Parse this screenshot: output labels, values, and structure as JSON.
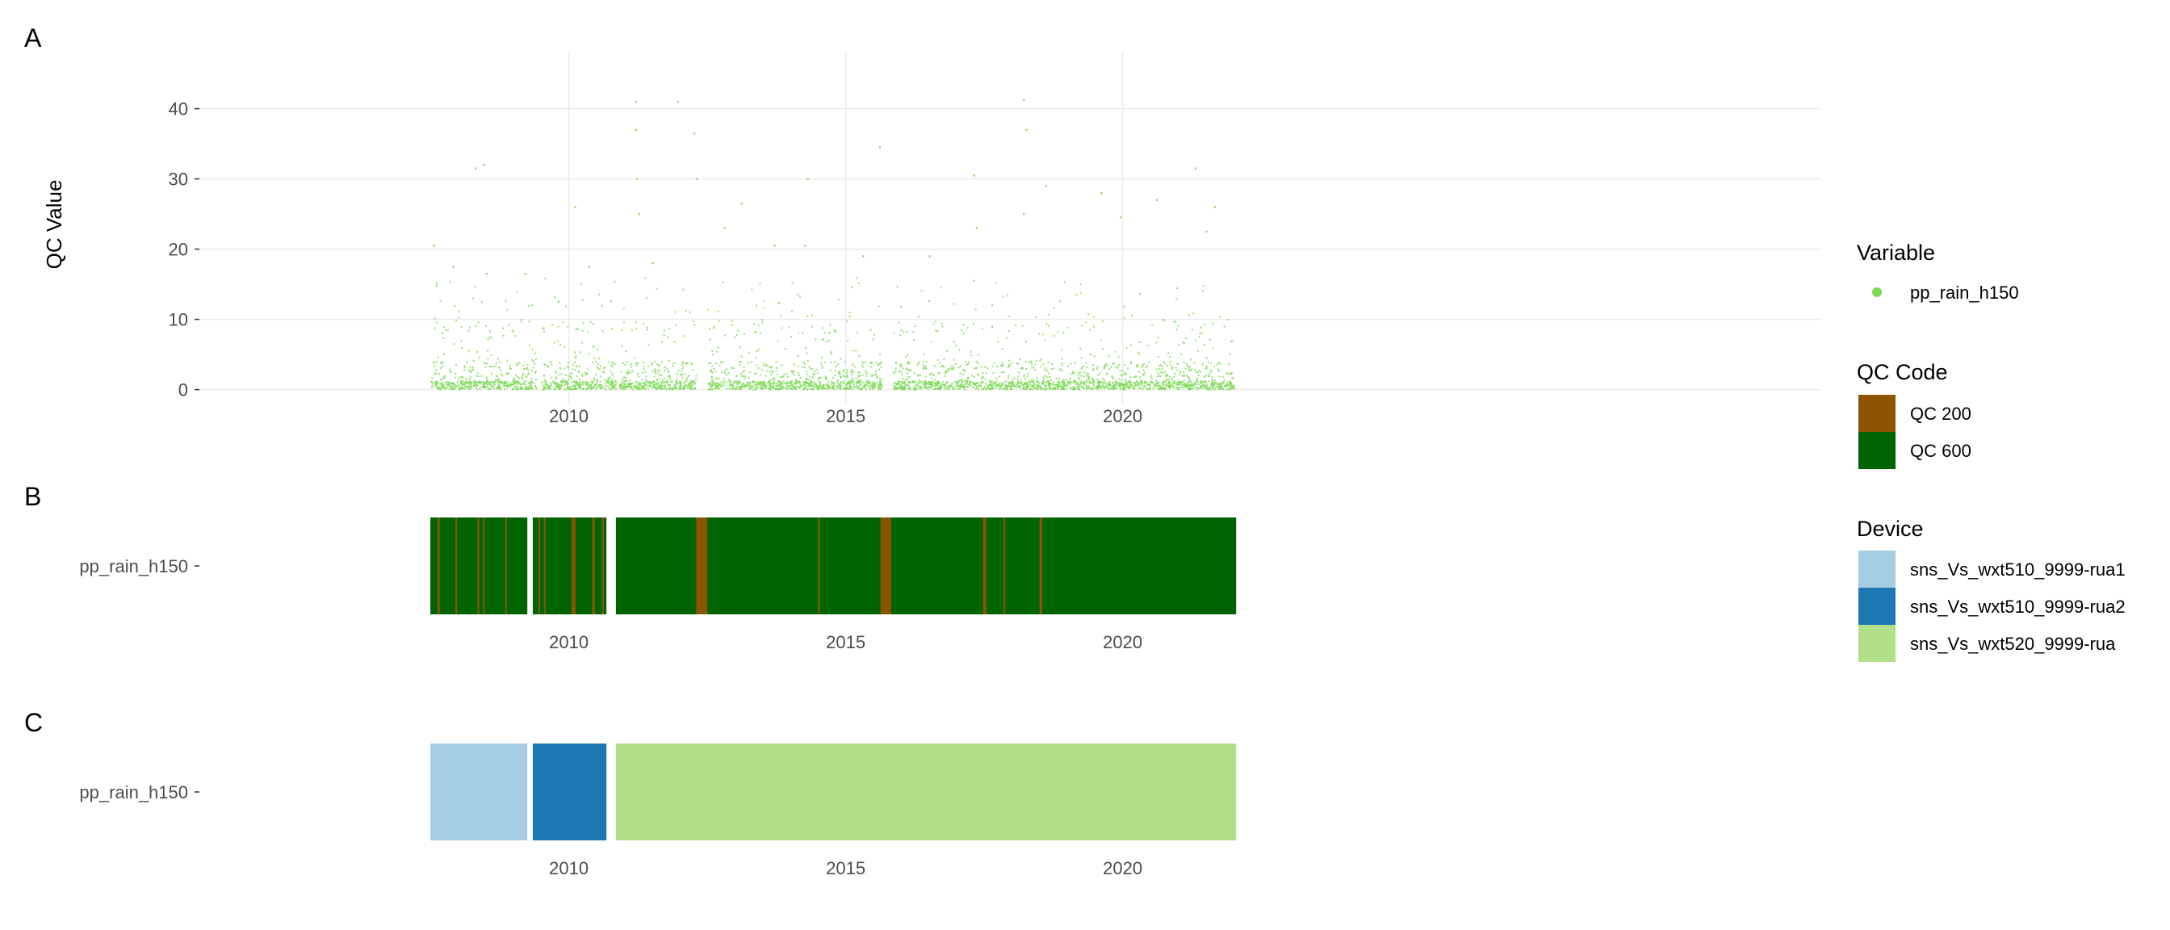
{
  "chart_data": [
    {
      "panel_label": "A",
      "type": "scatter",
      "ylabel": "QC Value",
      "ylim": [
        -2,
        48
      ],
      "xlim": [
        2003.3,
        2032.6
      ],
      "yticks": [
        0,
        10,
        20,
        30,
        40
      ],
      "xticks": [
        2010,
        2015,
        2020
      ],
      "grid": true,
      "color": "#7ed957",
      "series": [
        {
          "name": "pp_rain_h150",
          "coverage": [
            [
              2007.5,
              2009.4
            ],
            [
              2009.5,
              2010.85
            ],
            [
              2010.9,
              2012.3
            ],
            [
              2012.5,
              2015.65
            ],
            [
              2015.85,
              2022.0
            ]
          ],
          "peaks": [
            {
              "x": 2007.55,
              "y": 20.5
            },
            {
              "x": 2007.6,
              "y": 14.8
            },
            {
              "x": 2007.9,
              "y": 17.5
            },
            {
              "x": 2008.3,
              "y": 31.5
            },
            {
              "x": 2008.45,
              "y": 32.0
            },
            {
              "x": 2008.5,
              "y": 16.5
            },
            {
              "x": 2009.2,
              "y": 16.5
            },
            {
              "x": 2009.8,
              "y": 12.5
            },
            {
              "x": 2010.1,
              "y": 26.0
            },
            {
              "x": 2010.35,
              "y": 17.5
            },
            {
              "x": 2011.2,
              "y": 41.0
            },
            {
              "x": 2011.2,
              "y": 37.0
            },
            {
              "x": 2011.22,
              "y": 30.0
            },
            {
              "x": 2011.25,
              "y": 25.0
            },
            {
              "x": 2011.5,
              "y": 18.0
            },
            {
              "x": 2011.95,
              "y": 41.0
            },
            {
              "x": 2012.25,
              "y": 36.5
            },
            {
              "x": 2012.3,
              "y": 30.0
            },
            {
              "x": 2012.8,
              "y": 23.0
            },
            {
              "x": 2013.1,
              "y": 26.5
            },
            {
              "x": 2013.7,
              "y": 20.5
            },
            {
              "x": 2014.3,
              "y": 30.0
            },
            {
              "x": 2014.25,
              "y": 20.5
            },
            {
              "x": 2015.3,
              "y": 19.0
            },
            {
              "x": 2015.6,
              "y": 34.5
            },
            {
              "x": 2016.5,
              "y": 19.0
            },
            {
              "x": 2017.3,
              "y": 30.5
            },
            {
              "x": 2017.35,
              "y": 23.0
            },
            {
              "x": 2018.2,
              "y": 41.2
            },
            {
              "x": 2018.25,
              "y": 37.0
            },
            {
              "x": 2018.2,
              "y": 25.0
            },
            {
              "x": 2018.6,
              "y": 29.0
            },
            {
              "x": 2019.6,
              "y": 28.0
            },
            {
              "x": 2019.95,
              "y": 24.5
            },
            {
              "x": 2020.6,
              "y": 27.0
            },
            {
              "x": 2021.3,
              "y": 31.5
            },
            {
              "x": 2021.5,
              "y": 22.5
            },
            {
              "x": 2021.65,
              "y": 26.0
            }
          ]
        }
      ]
    },
    {
      "panel_label": "B",
      "type": "heatmap",
      "xlim": [
        2003.3,
        2032.6
      ],
      "xticks": [
        2010,
        2015,
        2020
      ],
      "row_label": "pp_rain_h150",
      "segments": [
        {
          "x0": 2007.5,
          "x1": 2009.25,
          "code": "QC 600"
        },
        {
          "x0": 2009.35,
          "x1": 2010.68,
          "code": "QC 600"
        },
        {
          "x0": 2010.85,
          "x1": 2022.05,
          "code": "QC 600"
        }
      ],
      "marks": [
        {
          "x0": 2007.63,
          "x1": 2007.67,
          "code": "QC 200"
        },
        {
          "x0": 2007.95,
          "x1": 2007.98,
          "code": "QC 200"
        },
        {
          "x0": 2008.35,
          "x1": 2008.38,
          "code": "QC 200"
        },
        {
          "x0": 2008.45,
          "x1": 2008.48,
          "code": "QC 200"
        },
        {
          "x0": 2008.85,
          "x1": 2008.88,
          "code": "QC 200"
        },
        {
          "x0": 2009.45,
          "x1": 2009.47,
          "code": "QC 200"
        },
        {
          "x0": 2009.55,
          "x1": 2009.57,
          "code": "QC 200"
        },
        {
          "x0": 2010.05,
          "x1": 2010.12,
          "code": "QC 200"
        },
        {
          "x0": 2010.42,
          "x1": 2010.47,
          "code": "QC 200"
        },
        {
          "x0": 2010.6,
          "x1": 2010.63,
          "code": "QC 200"
        },
        {
          "x0": 2012.3,
          "x1": 2012.5,
          "code": "QC 200"
        },
        {
          "x0": 2014.5,
          "x1": 2014.53,
          "code": "QC 200"
        },
        {
          "x0": 2015.63,
          "x1": 2015.82,
          "code": "QC 200"
        },
        {
          "x0": 2017.48,
          "x1": 2017.54,
          "code": "QC 200"
        },
        {
          "x0": 2017.85,
          "x1": 2017.88,
          "code": "QC 200"
        },
        {
          "x0": 2018.5,
          "x1": 2018.55,
          "code": "QC 200"
        }
      ]
    },
    {
      "panel_label": "C",
      "type": "heatmap",
      "xlim": [
        2003.3,
        2032.6
      ],
      "xticks": [
        2010,
        2015,
        2020
      ],
      "row_label": "pp_rain_h150",
      "segments": [
        {
          "x0": 2007.5,
          "x1": 2009.25,
          "device": "sns_Vs_wxt510_9999-rua1"
        },
        {
          "x0": 2009.35,
          "x1": 2010.68,
          "device": "sns_Vs_wxt510_9999-rua2"
        },
        {
          "x0": 2010.85,
          "x1": 2022.05,
          "device": "sns_Vs_wxt520_9999-rua"
        }
      ]
    }
  ],
  "legends": {
    "variable": {
      "title": "Variable",
      "items": [
        {
          "label": "pp_rain_h150",
          "color": "#7ed957"
        }
      ]
    },
    "qc_code": {
      "title": "QC Code",
      "items": [
        {
          "label": "QC 200",
          "color": "#8c5400"
        },
        {
          "label": "QC 600",
          "color": "#006400"
        }
      ]
    },
    "device": {
      "title": "Device",
      "items": [
        {
          "label": "sns_Vs_wxt510_9999-rua1",
          "color": "#a6cee3"
        },
        {
          "label": "sns_Vs_wxt510_9999-rua2",
          "color": "#1f78b4"
        },
        {
          "label": "sns_Vs_wxt520_9999-rua",
          "color": "#b2df8a"
        }
      ]
    }
  }
}
